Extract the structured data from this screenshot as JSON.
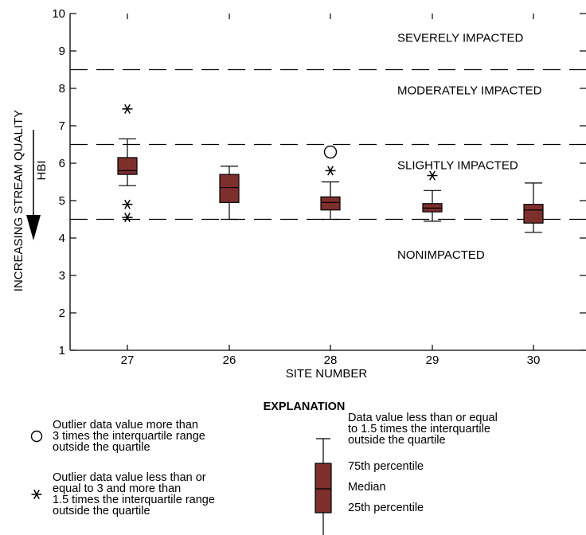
{
  "chart_data": {
    "type": "box",
    "xlabel": "SITE NUMBER",
    "ylabel": "INCREASING STREAM QUALITY",
    "ylabel_arrow_label": "HBI",
    "ylim": [
      1,
      10
    ],
    "yticks": [
      1,
      2,
      3,
      4,
      5,
      6,
      7,
      8,
      9,
      10
    ],
    "categories": [
      "27",
      "26",
      "28",
      "29",
      "30"
    ],
    "boxes": [
      {
        "site": "27",
        "whisker_low": 5.4,
        "q1": 5.7,
        "median": 5.8,
        "q3": 6.15,
        "whisker_high": 6.65,
        "outliers_mild": [
          7.45,
          4.9,
          4.55
        ],
        "outliers_extreme": []
      },
      {
        "site": "26",
        "whisker_low": 4.5,
        "q1": 4.95,
        "median": 5.35,
        "q3": 5.7,
        "whisker_high": 5.92,
        "outliers_mild": [],
        "outliers_extreme": []
      },
      {
        "site": "28",
        "whisker_low": 4.5,
        "q1": 4.75,
        "median": 4.95,
        "q3": 5.1,
        "whisker_high": 5.5,
        "outliers_mild": [
          5.8
        ],
        "outliers_extreme": [
          6.3
        ]
      },
      {
        "site": "29",
        "whisker_low": 4.45,
        "q1": 4.7,
        "median": 4.8,
        "q3": 4.92,
        "whisker_high": 5.27,
        "outliers_mild": [
          5.67
        ],
        "outliers_extreme": []
      },
      {
        "site": "30",
        "whisker_low": 4.15,
        "q1": 4.4,
        "median": 4.75,
        "q3": 4.9,
        "whisker_high": 5.47,
        "outliers_mild": [],
        "outliers_extreme": []
      }
    ],
    "thresholds": [
      8.5,
      6.5,
      4.5
    ],
    "zones": [
      {
        "label": "SEVERELY IMPACTED",
        "y": 9.35
      },
      {
        "label": "MODERATELY IMPACTED",
        "y": 7.95
      },
      {
        "label": "SLIGHTLY IMPACTED",
        "y": 5.95
      },
      {
        "label": "NONIMPACTED",
        "y": 3.55
      }
    ],
    "box_color": "#7d2f2c",
    "grid": false
  },
  "explanation": {
    "title": "EXPLANATION",
    "outlier_extreme_lines": [
      "Outlier data value more than",
      "3 times the interquartile range",
      "outside the quartile"
    ],
    "outlier_mild_lines": [
      "Outlier data value less than or",
      "equal to 3 and more than",
      "1.5 times the interquartile range",
      "outside the quartile"
    ],
    "whisker_lines": [
      "Data value less than or equal",
      "to 1.5 times the interquartile",
      "outside the quartile"
    ],
    "p75_label": "75th percentile",
    "median_label": "Median",
    "p25_label": "25th percentile"
  }
}
